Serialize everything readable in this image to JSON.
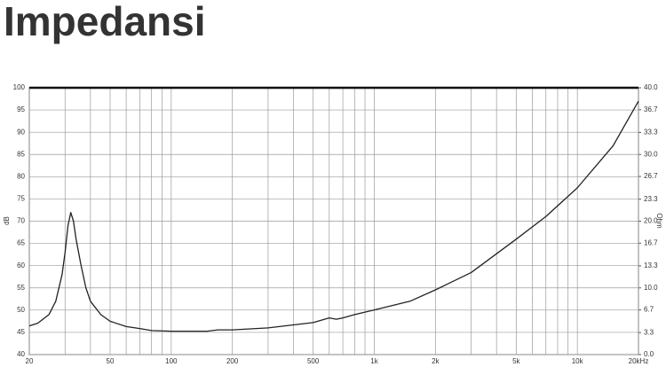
{
  "chart_data": {
    "type": "line",
    "title": "Impedansi",
    "y_label": "dB",
    "y2_label": "Ohm",
    "log_x": true,
    "grid": true,
    "xlim": [
      20,
      20000
    ],
    "xticks": [
      20,
      50,
      100,
      200,
      500,
      {
        "value": 1000,
        "label": "1k"
      },
      {
        "value": 2000,
        "label": "2k"
      },
      {
        "value": 5000,
        "label": "5k"
      },
      {
        "value": 10000,
        "label": "10k"
      },
      {
        "value": 20000,
        "label": "20kHz"
      }
    ],
    "x_minor_ticks": [
      30,
      40,
      60,
      70,
      80,
      90,
      300,
      400,
      600,
      700,
      800,
      900,
      3000,
      4000,
      6000,
      7000,
      8000,
      9000
    ],
    "ylim": [
      40,
      100
    ],
    "yticks": [
      40,
      45,
      50,
      55,
      60,
      65,
      70,
      75,
      80,
      85,
      90,
      95,
      100
    ],
    "y2lim": [
      0,
      40
    ],
    "y2ticks": [
      {
        "value": 0,
        "label": "0.0"
      },
      3.3,
      6.7,
      {
        "value": 10,
        "label": "10.0"
      },
      13.3,
      16.7,
      {
        "value": 20,
        "label": "20.0"
      },
      23.3,
      26.7,
      {
        "value": 30,
        "label": "30.0"
      },
      33.3,
      36.7,
      {
        "value": 40,
        "label": "40.0"
      }
    ],
    "x": [
      20,
      22,
      25,
      27,
      29,
      30,
      31,
      32,
      33,
      34,
      36,
      38,
      40,
      45,
      50,
      60,
      70,
      80,
      100,
      150,
      170,
      200,
      300,
      500,
      600,
      650,
      700,
      800,
      1000,
      1500,
      2000,
      3000,
      5000,
      7000,
      10000,
      15000,
      20000
    ],
    "series": [
      {
        "axis": "y2",
        "color": "#222222",
        "values": [
          4.3,
          4.7,
          6.0,
          8.0,
          12.0,
          15.3,
          19.3,
          21.3,
          20.0,
          17.3,
          13.3,
          10.0,
          8.0,
          6.0,
          5.0,
          4.2,
          3.9,
          3.6,
          3.5,
          3.5,
          3.7,
          3.7,
          4.0,
          4.8,
          5.5,
          5.3,
          5.5,
          6.0,
          6.7,
          8.0,
          9.7,
          12.3,
          17.3,
          20.7,
          25.0,
          31.3,
          38.0
        ]
      }
    ]
  }
}
